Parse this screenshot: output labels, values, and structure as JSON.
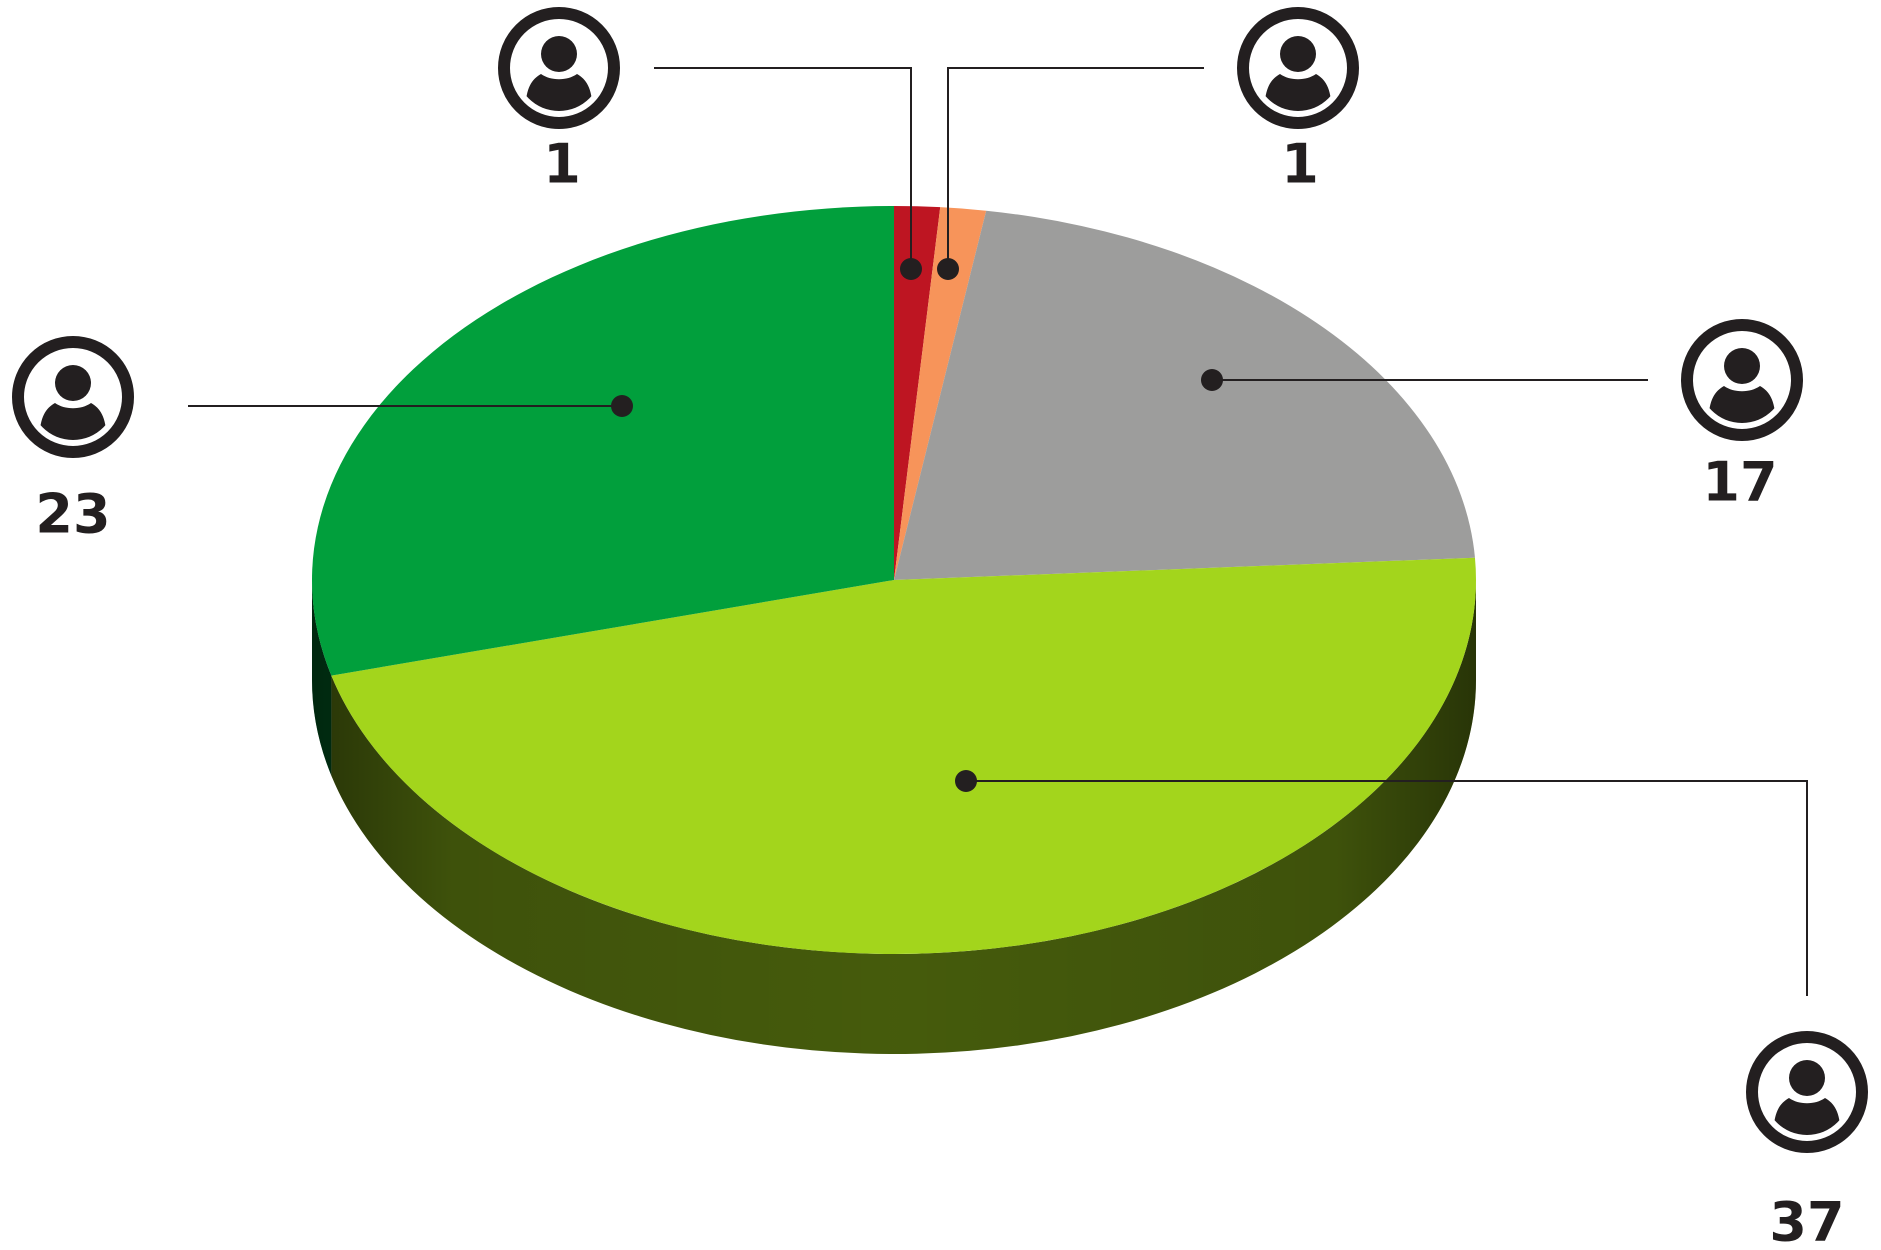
{
  "chart_data": {
    "type": "pie",
    "values": [
      1,
      1,
      17,
      37,
      23
    ],
    "colors": [
      "#be1522",
      "#f7945a",
      "#9d9d9c",
      "#a3d51c",
      "#019f3c"
    ]
  }
}
